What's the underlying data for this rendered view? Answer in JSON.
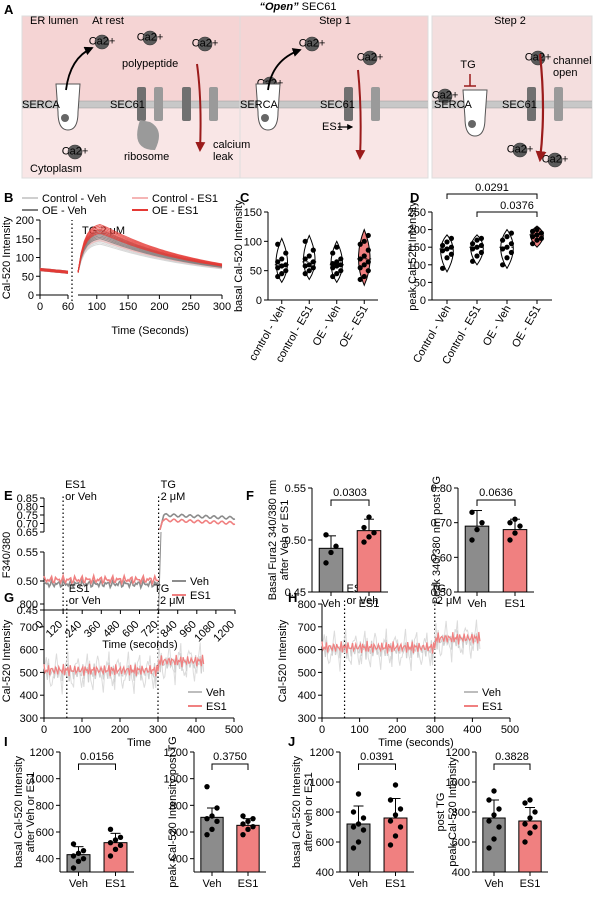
{
  "colors": {
    "veh": "#8c8c8c",
    "es1": "#f08080",
    "es1_dark": "#e53935",
    "control_veh": "#cfcfcf",
    "control_es1": "#f5b5b5",
    "oe_veh": "#7f7f7f",
    "oe_es1": "#e53935",
    "panel_bg": "#f7d8d8",
    "dark_red": "#9b1b1b"
  },
  "panel_letters": [
    "A",
    "B",
    "C",
    "D",
    "E",
    "F",
    "G",
    "H",
    "I",
    "J"
  ],
  "schematic": {
    "title_quoted": "“Open”",
    "title_rest": "SEC61",
    "columns": [
      {
        "header": "At rest",
        "labels": [
          "ER lumen",
          "polypeptide",
          "SERCA",
          "SEC61",
          "Cytoplasm",
          "ribosome",
          "calcium leak"
        ]
      },
      {
        "header": "Step 1",
        "labels": [
          "SERCA",
          "SEC61",
          "ES1"
        ]
      },
      {
        "header": "Step 2",
        "labels": [
          "TG",
          "SERCA",
          "SEC61",
          "channel open"
        ]
      }
    ],
    "ion_label": "Ca2+"
  },
  "chart_data": [
    {
      "id": "B",
      "type": "line",
      "ylabel": "Cal-520 Intensity",
      "xlabel": "Time (Seconds)",
      "annotation": "TG 2 μM",
      "legend": [
        "Control - Veh",
        "Control - ES1",
        "OE - Veh",
        "OE - ES1"
      ],
      "xticks_left": [
        0,
        60
      ],
      "xticks_right": [
        100,
        150,
        200,
        250,
        300
      ],
      "ylim": [
        0,
        200
      ],
      "yticks": [
        0,
        50,
        100,
        150,
        200
      ],
      "series_peak": {
        "Control - Veh": 150,
        "Control - ES1": 160,
        "OE - Veh": 165,
        "OE - ES1": 180
      }
    },
    {
      "id": "C",
      "type": "violin",
      "ylabel": "basal Cal-520 Intensity",
      "categories": [
        "control - Veh",
        "control - ES1",
        "OE - Veh",
        "OE - ES1"
      ],
      "ylim": [
        0,
        150
      ],
      "yticks": [
        0,
        50,
        100,
        150
      ],
      "points": [
        [
          40,
          45,
          50,
          55,
          58,
          60,
          65,
          70,
          80,
          95
        ],
        [
          45,
          50,
          55,
          58,
          60,
          65,
          70,
          75,
          85,
          100
        ],
        [
          40,
          45,
          50,
          55,
          58,
          60,
          62,
          65,
          70,
          80,
          90
        ],
        [
          35,
          40,
          50,
          55,
          60,
          65,
          70,
          75,
          85,
          95,
          100,
          110
        ]
      ]
    },
    {
      "id": "D",
      "type": "violin",
      "ylabel": "peak Cal-520 Intensity",
      "categories": [
        "Control - Veh",
        "Control - ES1",
        "OE - Veh",
        "OE - ES1"
      ],
      "ylim": [
        0,
        250
      ],
      "yticks": [
        0,
        50,
        100,
        150,
        200,
        250
      ],
      "brackets": [
        {
          "from": 0,
          "to": 3,
          "label": "0.0291"
        },
        {
          "from": 1,
          "to": 3,
          "label": "0.0376"
        }
      ],
      "points": [
        [
          90,
          120,
          130,
          140,
          145,
          150,
          155,
          165,
          175
        ],
        [
          110,
          125,
          135,
          145,
          150,
          155,
          160,
          170,
          175
        ],
        [
          100,
          120,
          135,
          145,
          150,
          160,
          170,
          180,
          190
        ],
        [
          160,
          170,
          175,
          180,
          185,
          190,
          195,
          200
        ]
      ]
    },
    {
      "id": "E",
      "type": "line",
      "ylabel": "F340/380",
      "xlabel": "Time (seconds)",
      "annotations": [
        "ES1",
        "or Veh",
        "TG",
        "2 μM"
      ],
      "xticks": [
        0,
        120,
        240,
        360,
        480,
        600,
        720,
        840,
        960,
        1080,
        1200
      ],
      "yticks_bottom": [
        0.45,
        0.5,
        0.55
      ],
      "yticks_top": [
        0.65,
        0.7,
        0.75,
        0.8,
        0.85
      ],
      "legend": [
        "Veh",
        "ES1"
      ]
    },
    {
      "id": "F1",
      "type": "bar",
      "ylabel_lines": [
        "Basal Fura2 340/380 nm",
        "after Veh or ES1"
      ],
      "categories": [
        "Veh",
        "ES1"
      ],
      "values": [
        0.492,
        0.509
      ],
      "errors": [
        0.012,
        0.011
      ],
      "points": [
        [
          0.478,
          0.488,
          0.494,
          0.505
        ],
        [
          0.498,
          0.503,
          0.507,
          0.512,
          0.522
        ]
      ],
      "ylim": [
        0.45,
        0.55
      ],
      "yticks": [
        0.45,
        0.5,
        0.55
      ],
      "bracket_label": "0.0303"
    },
    {
      "id": "F2",
      "type": "bar",
      "ylabel_lines": [
        "Peak 340/380 nm post TG"
      ],
      "categories": [
        "Veh",
        "ES1"
      ],
      "values": [
        0.69,
        0.68
      ],
      "errors": [
        0.045,
        0.03
      ],
      "points": [
        [
          0.65,
          0.68,
          0.7,
          0.73
        ],
        [
          0.65,
          0.67,
          0.69,
          0.7,
          0.71
        ]
      ],
      "ylim": [
        0.5,
        0.8
      ],
      "yticks": [
        0.5,
        0.6,
        0.7,
        0.8
      ],
      "bracket_label": "0.0636"
    },
    {
      "id": "G",
      "type": "line",
      "ylabel": "Cal-520 Intensity",
      "xlabel": "Time",
      "annotations": [
        "ES1",
        "or Veh",
        "TG",
        "2 μM"
      ],
      "xticks": [
        0,
        100,
        200,
        300,
        400,
        500
      ],
      "yticks": [
        300,
        400,
        500,
        600,
        700,
        800
      ],
      "legend": [
        "Veh",
        "ES1"
      ]
    },
    {
      "id": "H",
      "type": "line",
      "ylabel": "Cal-520 Intensity",
      "xlabel": "Time (seconds)",
      "annotations": [
        "ES1",
        "or Veh",
        "TG",
        "2 μM"
      ],
      "xticks": [
        0,
        100,
        200,
        300,
        400,
        500
      ],
      "yticks": [
        300,
        400,
        500,
        600,
        700,
        800
      ],
      "legend": [
        "Veh",
        "ES1"
      ]
    },
    {
      "id": "I1",
      "type": "bar",
      "ylabel_lines": [
        "basal Cal-520 Intensity",
        "after Veh or ES1"
      ],
      "categories": [
        "Veh",
        "ES1"
      ],
      "values": [
        430,
        520
      ],
      "errors": [
        60,
        70
      ],
      "points": [
        [
          330,
          380,
          400,
          420,
          440,
          460,
          510
        ],
        [
          420,
          470,
          500,
          520,
          540,
          560,
          620
        ]
      ],
      "ylim": [
        300,
        1200
      ],
      "yticks": [
        400,
        600,
        800,
        1000,
        1200
      ],
      "bracket_label": "0.0156"
    },
    {
      "id": "I2",
      "type": "bar",
      "ylabel_lines": [
        "peak Cal-520 Intensity post TG"
      ],
      "categories": [
        "Veh",
        "ES1"
      ],
      "values": [
        710,
        650
      ],
      "errors": [
        70,
        50
      ],
      "points": [
        [
          580,
          620,
          680,
          700,
          720,
          780,
          940
        ],
        [
          580,
          620,
          640,
          660,
          680,
          700,
          720
        ]
      ],
      "ylim": [
        300,
        1200
      ],
      "yticks": [
        400,
        600,
        800,
        1000,
        1200
      ],
      "bracket_label": "0.3750"
    },
    {
      "id": "J1",
      "type": "bar",
      "ylabel_lines": [
        "basal Cal-520 Intensity",
        "after veh or ES1"
      ],
      "categories": [
        "Veh",
        "ES1"
      ],
      "values": [
        720,
        760
      ],
      "errors": [
        120,
        130
      ],
      "points": [
        [
          560,
          600,
          680,
          700,
          720,
          760,
          800,
          920
        ],
        [
          580,
          640,
          700,
          740,
          780,
          820,
          880,
          980
        ]
      ],
      "ylim": [
        400,
        1200
      ],
      "yticks": [
        400,
        600,
        800,
        1000,
        1200
      ],
      "bracket_label": "0.0391"
    },
    {
      "id": "J2",
      "type": "bar",
      "ylabel_lines": [
        "post TG",
        "peak Cal-520 Intensity"
      ],
      "categories": [
        "Veh",
        "ES1"
      ],
      "values": [
        760,
        740
      ],
      "errors": [
        120,
        90
      ],
      "points": [
        [
          560,
          620,
          700,
          740,
          780,
          820,
          880,
          940
        ],
        [
          600,
          660,
          700,
          720,
          760,
          800,
          860,
          880
        ]
      ],
      "ylim": [
        400,
        1200
      ],
      "yticks": [
        400,
        600,
        800,
        1000,
        1200
      ],
      "bracket_label": "0.3828"
    }
  ]
}
